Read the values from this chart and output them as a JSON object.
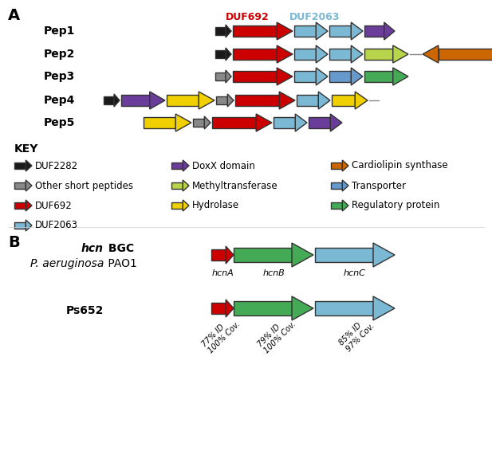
{
  "title_A": "A",
  "title_B": "B",
  "colors": {
    "black": "#1a1a1a",
    "gray": "#888888",
    "red": "#cc0000",
    "light_blue": "#7ab8d4",
    "purple": "#6a3d9a",
    "yellow": "#f0d000",
    "yellow_green": "#b8d44a",
    "green": "#4aaa50",
    "orange": "#cc6600",
    "blue_trans": "#6699cc",
    "green_reg": "#44aa55"
  },
  "pep_labels": [
    "Pep1",
    "Pep2",
    "Pep3",
    "Pep4",
    "Pep5"
  ],
  "duf692_label": "DUF692",
  "duf2063_label": "DUF2063",
  "key_items": [
    {
      "color": "#1a1a1a",
      "label": "DUF2282"
    },
    {
      "color": "#888888",
      "label": "Other short peptides"
    },
    {
      "color": "#cc0000",
      "label": "DUF692"
    },
    {
      "color": "#7ab8d4",
      "label": "DUF2063"
    }
  ],
  "key_items2": [
    {
      "color": "#6a3d9a",
      "label": "DoxX domain"
    },
    {
      "color": "#b8d44a",
      "label": "Methyltransferase"
    },
    {
      "color": "#f0d000",
      "label": "Hydrolase"
    }
  ],
  "key_items3": [
    {
      "color": "#cc6600",
      "label": "Cardiolipin synthase"
    },
    {
      "color": "#6699cc",
      "label": "Transporter"
    },
    {
      "color": "#44aa55",
      "label": "Regulatory protein"
    }
  ],
  "hcn_label1": "hcn",
  "hcn_label2": " BGC",
  "hcn_label3": "P. aeruginosa",
  "hcn_label4": " PAO1",
  "ps652_label": "Ps652",
  "hcnA": "hcnA",
  "hcnB": "hcnB",
  "hcnC": "hcnC",
  "ps_annots": [
    "77% ID\n100% Cov.",
    "79% ID\n100% Cov.",
    "85% ID\n97% Cov."
  ]
}
